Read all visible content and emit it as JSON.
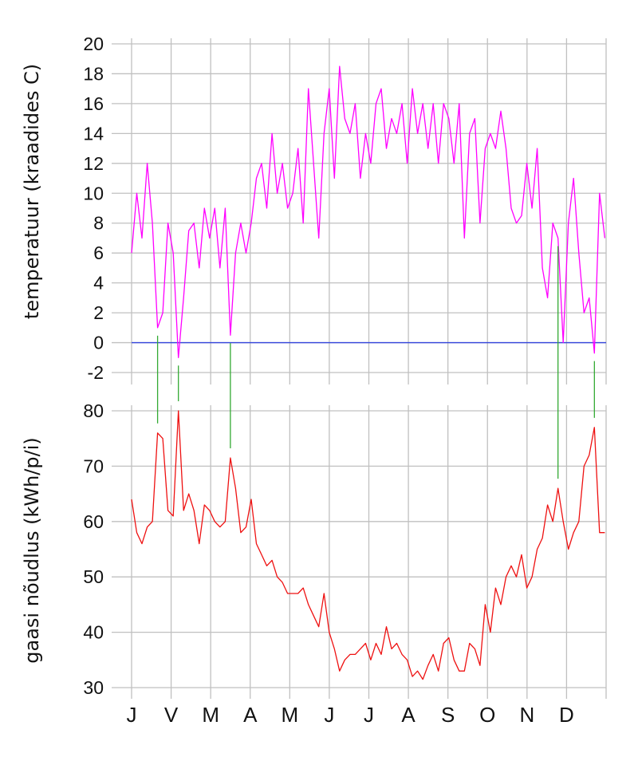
{
  "chart_data": [
    {
      "type": "line",
      "ylabel": "temperatuur (kraadides C)",
      "ylim": [
        -2,
        20
      ],
      "yticks": [
        -2,
        0,
        2,
        4,
        6,
        8,
        10,
        12,
        14,
        16,
        18,
        20
      ],
      "grid": true,
      "reference_line": {
        "y": 0,
        "color": "#3344dd"
      },
      "series": [
        {
          "color": "#ff00ff",
          "x": [
            0,
            4,
            8,
            12,
            16,
            20,
            24,
            28,
            32,
            36,
            40,
            44,
            48,
            52,
            56,
            60,
            64,
            68,
            72,
            76,
            80,
            84,
            88,
            92,
            96,
            100,
            104,
            108,
            112,
            116,
            120,
            124,
            128,
            132,
            136,
            140,
            144,
            148,
            152,
            156,
            160,
            164,
            168,
            172,
            176,
            180,
            184,
            188,
            192,
            196,
            200,
            204,
            208,
            212,
            216,
            220,
            224,
            228,
            232,
            236,
            240,
            244,
            248,
            252,
            256,
            260,
            264,
            268,
            272,
            276,
            280,
            284,
            288,
            292,
            296,
            300,
            304,
            308,
            312,
            316,
            320,
            324,
            328,
            332,
            336,
            340,
            344,
            348,
            352,
            356,
            360,
            364
          ],
          "values": [
            6,
            10,
            7,
            12,
            8,
            1,
            2,
            8,
            6,
            -1,
            3,
            7.5,
            8,
            5,
            9,
            7,
            9,
            5,
            9,
            0.5,
            6,
            8,
            6,
            8,
            11,
            12,
            9,
            14,
            10,
            12,
            9,
            10,
            13,
            8,
            17,
            12,
            7,
            14,
            17,
            11,
            18.5,
            15,
            14,
            16,
            11,
            14,
            12,
            16,
            17,
            13,
            15,
            14,
            16,
            12,
            17,
            14,
            16,
            13,
            16,
            12,
            16,
            15,
            12,
            16,
            7,
            14,
            15,
            8,
            13,
            14,
            13,
            15.5,
            13,
            9,
            8,
            8.5,
            12,
            9,
            13,
            5,
            3,
            8,
            7,
            0,
            8,
            11,
            6,
            2,
            3,
            -0.7,
            10,
            7
          ]
        }
      ]
    },
    {
      "type": "line",
      "ylabel": "gaasi nõudlus (kWh/p/i)",
      "ylim": [
        30,
        80
      ],
      "yticks": [
        30,
        40,
        50,
        60,
        70,
        80
      ],
      "grid": true,
      "categories": [
        "J",
        "V",
        "M",
        "A",
        "M",
        "J",
        "J",
        "A",
        "S",
        "O",
        "N",
        "D"
      ],
      "series": [
        {
          "color": "#ee1111",
          "x": [
            0,
            4,
            8,
            12,
            16,
            20,
            24,
            28,
            32,
            36,
            40,
            44,
            48,
            52,
            56,
            60,
            64,
            68,
            72,
            76,
            80,
            84,
            88,
            92,
            96,
            100,
            104,
            108,
            112,
            116,
            120,
            124,
            128,
            132,
            136,
            140,
            144,
            148,
            152,
            156,
            160,
            164,
            168,
            172,
            176,
            180,
            184,
            188,
            192,
            196,
            200,
            204,
            208,
            212,
            216,
            220,
            224,
            228,
            232,
            236,
            240,
            244,
            248,
            252,
            256,
            260,
            264,
            268,
            272,
            276,
            280,
            284,
            288,
            292,
            296,
            300,
            304,
            308,
            312,
            316,
            320,
            324,
            328,
            332,
            336,
            340,
            344,
            348,
            352,
            356,
            360,
            364
          ],
          "values": [
            64,
            58,
            56,
            59,
            60,
            76,
            75,
            62,
            61,
            80,
            62,
            65,
            62,
            56,
            63,
            62,
            60,
            59,
            60,
            71.5,
            66,
            58,
            59,
            64,
            56,
            54,
            52,
            53,
            50,
            49,
            47,
            47,
            47,
            48,
            45,
            43,
            41,
            47,
            40,
            37,
            33,
            35,
            36,
            36,
            37,
            38,
            35,
            38,
            36,
            41,
            37,
            38,
            36,
            35,
            32,
            33,
            31.5,
            34,
            36,
            33,
            38,
            39,
            35,
            33,
            33,
            38,
            37,
            34,
            45,
            40,
            48,
            45,
            50,
            52,
            50,
            54,
            48,
            50,
            55,
            57,
            63,
            60,
            66,
            60,
            55,
            58,
            60,
            70,
            72,
            77,
            58,
            58
          ]
        }
      ]
    }
  ],
  "cold_day_markers": {
    "days": [
      20,
      36,
      76,
      328,
      356
    ],
    "color": "#33aa33"
  }
}
